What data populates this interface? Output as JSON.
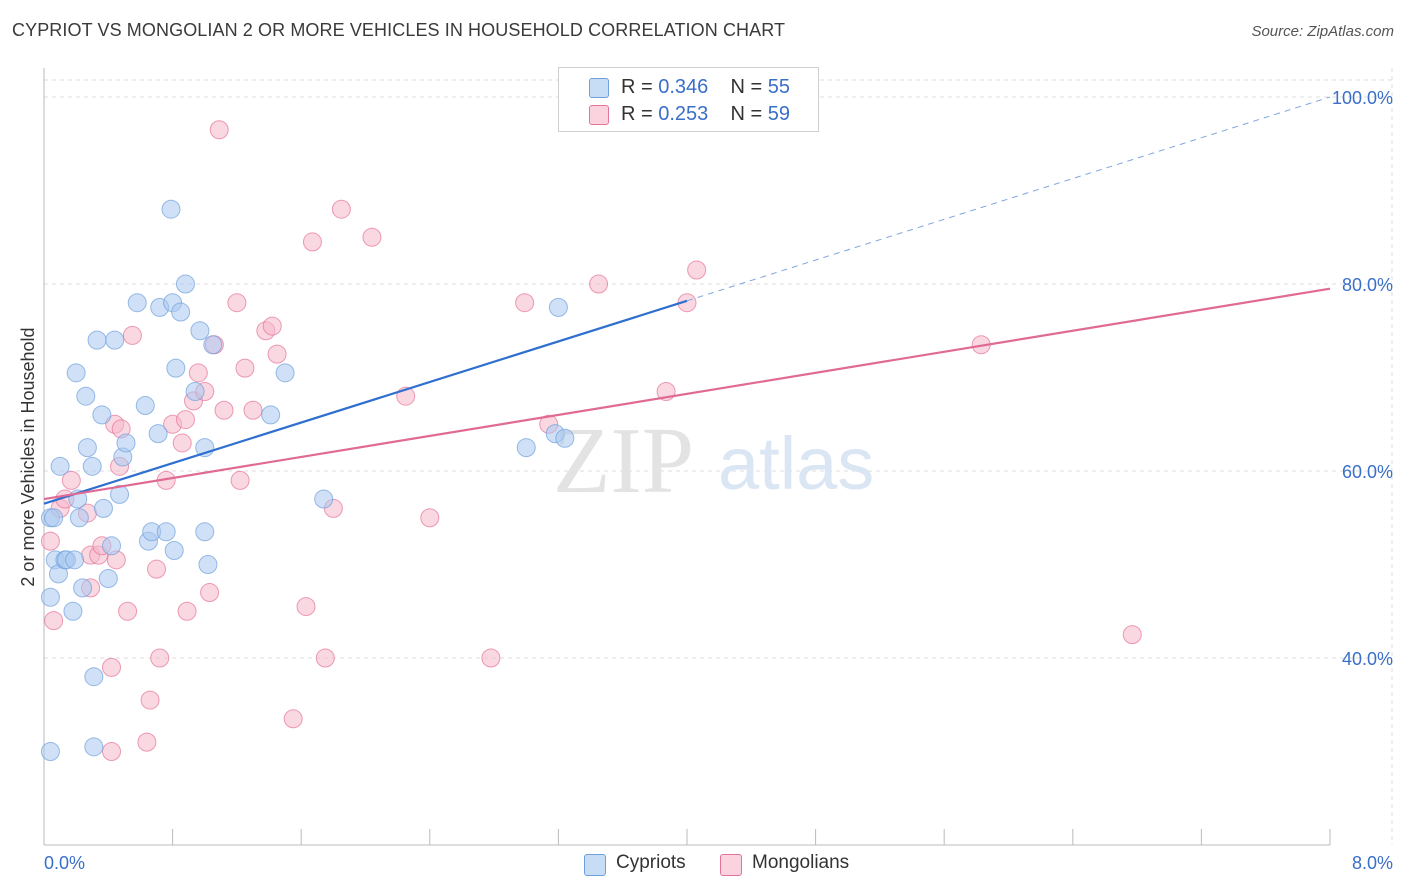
{
  "title": "CYPRIOT VS MONGOLIAN 2 OR MORE VEHICLES IN HOUSEHOLD CORRELATION CHART",
  "source": "Source: ZipAtlas.com",
  "watermark": {
    "zip": "ZIP",
    "atlas": "atlas"
  },
  "legend": {
    "rows": [
      {
        "r_label": "R = ",
        "r_value": "0.346",
        "n_label": "N = ",
        "n_value": "55",
        "color": "#a9c8f0"
      },
      {
        "r_label": "R = ",
        "r_value": "0.253",
        "n_label": "N = ",
        "n_value": "59",
        "color": "#f5b8cb"
      }
    ]
  },
  "bottom_legend": [
    {
      "label": "Cypriots",
      "color": "#a9c8f0"
    },
    {
      "label": "Mongolians",
      "color": "#f5b8cb"
    }
  ],
  "chart_data": {
    "type": "scatter",
    "title": "CYPRIOT VS MONGOLIAN 2 OR MORE VEHICLES IN HOUSEHOLD CORRELATION CHART",
    "xlabel": "",
    "ylabel": "2 or more Vehicles in Household",
    "xlim": [
      0,
      8
    ],
    "ylim": [
      20,
      100
    ],
    "x_tick_labels": [
      "0.0%",
      "8.0%"
    ],
    "y_ticks": [
      40,
      60,
      80,
      100
    ],
    "y_tick_labels": [
      "40.0%",
      "60.0%",
      "80.0%",
      "100.0%"
    ],
    "grid": true,
    "legend_position": "top-center",
    "series": [
      {
        "name": "Cypriots",
        "color": "#6fa0dc",
        "fill": "#a9c8f0",
        "trend": {
          "x0": 0,
          "y0": 56.5,
          "x1": 4,
          "y1": 78.2,
          "dashed_to_x": 8,
          "dashed_to_y": 100
        },
        "points": [
          [
            0.04,
            30
          ],
          [
            0.04,
            46.5
          ],
          [
            0.04,
            55
          ],
          [
            0.06,
            55
          ],
          [
            0.07,
            50.5
          ],
          [
            0.09,
            49
          ],
          [
            0.1,
            60.5
          ],
          [
            0.13,
            50.5
          ],
          [
            0.14,
            50.5
          ],
          [
            0.18,
            45
          ],
          [
            0.19,
            50.5
          ],
          [
            0.2,
            70.5
          ],
          [
            0.21,
            57
          ],
          [
            0.22,
            55
          ],
          [
            0.24,
            47.5
          ],
          [
            0.26,
            68
          ],
          [
            0.27,
            62.5
          ],
          [
            0.3,
            60.5
          ],
          [
            0.31,
            38
          ],
          [
            0.31,
            30.5
          ],
          [
            0.33,
            74
          ],
          [
            0.36,
            66
          ],
          [
            0.37,
            56
          ],
          [
            0.4,
            48.5
          ],
          [
            0.42,
            52
          ],
          [
            0.44,
            74
          ],
          [
            0.47,
            57.5
          ],
          [
            0.49,
            61.5
          ],
          [
            0.51,
            63
          ],
          [
            0.58,
            78
          ],
          [
            0.63,
            67
          ],
          [
            0.65,
            52.5
          ],
          [
            0.67,
            53.5
          ],
          [
            0.71,
            64
          ],
          [
            0.72,
            77.5
          ],
          [
            0.76,
            53.5
          ],
          [
            0.79,
            88
          ],
          [
            0.8,
            78
          ],
          [
            0.81,
            51.5
          ],
          [
            0.82,
            71
          ],
          [
            0.85,
            77
          ],
          [
            0.88,
            80
          ],
          [
            0.94,
            68.5
          ],
          [
            0.97,
            75
          ],
          [
            1.0,
            53.5
          ],
          [
            1.0,
            62.5
          ],
          [
            1.02,
            50
          ],
          [
            1.05,
            73.5
          ],
          [
            1.41,
            66
          ],
          [
            1.5,
            70.5
          ],
          [
            1.74,
            57
          ],
          [
            3.0,
            62.5
          ],
          [
            3.18,
            64
          ],
          [
            3.24,
            63.5
          ],
          [
            3.2,
            77.5
          ]
        ]
      },
      {
        "name": "Mongolians",
        "color": "#e57399",
        "fill": "#f5b8cb",
        "trend": {
          "x0": 0,
          "y0": 57,
          "x1": 8,
          "y1": 79.5
        },
        "points": [
          [
            0.04,
            52.5
          ],
          [
            0.06,
            44
          ],
          [
            0.1,
            56
          ],
          [
            0.13,
            57
          ],
          [
            0.17,
            59
          ],
          [
            0.27,
            55.5
          ],
          [
            0.29,
            51
          ],
          [
            0.29,
            47.5
          ],
          [
            0.34,
            51
          ],
          [
            0.36,
            52
          ],
          [
            0.42,
            39
          ],
          [
            0.44,
            65
          ],
          [
            0.45,
            50.5
          ],
          [
            0.47,
            60.5
          ],
          [
            0.48,
            64.5
          ],
          [
            0.52,
            45
          ],
          [
            0.55,
            74.5
          ],
          [
            0.64,
            31
          ],
          [
            0.66,
            35.5
          ],
          [
            0.7,
            49.5
          ],
          [
            0.72,
            40
          ],
          [
            0.76,
            59
          ],
          [
            0.8,
            65
          ],
          [
            0.86,
            63
          ],
          [
            0.88,
            65.5
          ],
          [
            0.89,
            45
          ],
          [
            0.93,
            67.5
          ],
          [
            0.96,
            70.5
          ],
          [
            1.0,
            68.5
          ],
          [
            1.03,
            47
          ],
          [
            1.06,
            73.5
          ],
          [
            1.09,
            96.5
          ],
          [
            1.12,
            66.5
          ],
          [
            1.2,
            78
          ],
          [
            1.22,
            59
          ],
          [
            1.25,
            71
          ],
          [
            1.3,
            66.5
          ],
          [
            1.38,
            75
          ],
          [
            1.42,
            75.5
          ],
          [
            1.45,
            72.5
          ],
          [
            1.55,
            33.5
          ],
          [
            1.63,
            45.5
          ],
          [
            1.67,
            84.5
          ],
          [
            1.75,
            40
          ],
          [
            1.8,
            56
          ],
          [
            1.85,
            88
          ],
          [
            2.04,
            85
          ],
          [
            2.25,
            68
          ],
          [
            2.4,
            55
          ],
          [
            2.78,
            40
          ],
          [
            2.99,
            78
          ],
          [
            3.14,
            65
          ],
          [
            3.45,
            80
          ],
          [
            3.87,
            68.5
          ],
          [
            4.0,
            78
          ],
          [
            4.06,
            81.5
          ],
          [
            5.83,
            73.5
          ],
          [
            6.77,
            42.5
          ],
          [
            0.42,
            30
          ]
        ]
      }
    ]
  }
}
